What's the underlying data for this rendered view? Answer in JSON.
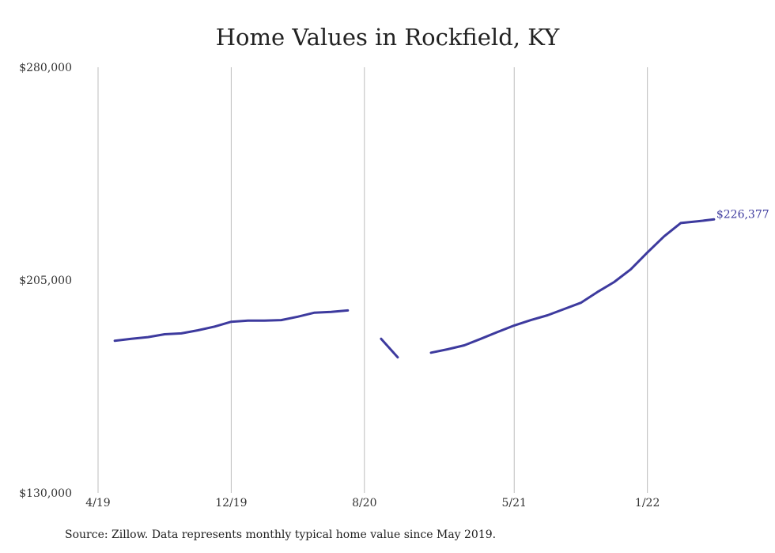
{
  "chart_data": {
    "type": "line",
    "title": "Home Values in Rockfield, KY",
    "xlabel": "",
    "ylabel": "",
    "ylim": [
      130000,
      280000
    ],
    "y_ticks": [
      "$130,000",
      "$205,000",
      "$280,000"
    ],
    "y_tick_values": [
      130000,
      205000,
      280000
    ],
    "x_ticks": [
      "4/19",
      "12/19",
      "8/20",
      "5/21",
      "1/22"
    ],
    "x_tick_dates": [
      "2019-04",
      "2019-12",
      "2020-08",
      "2021-05",
      "2022-01"
    ],
    "grid": "vertical",
    "line_color": "#3d3a9e",
    "end_label": "$226,377",
    "series": [
      {
        "segments": [
          [
            {
              "x": "2019-05",
              "y": 183600
            },
            {
              "x": "2019-06",
              "y": 184300
            },
            {
              "x": "2019-07",
              "y": 184900
            },
            {
              "x": "2019-08",
              "y": 185900
            },
            {
              "x": "2019-09",
              "y": 186200
            },
            {
              "x": "2019-10",
              "y": 187300
            },
            {
              "x": "2019-11",
              "y": 188600
            },
            {
              "x": "2019-12",
              "y": 190300
            },
            {
              "x": "2020-01",
              "y": 190700
            },
            {
              "x": "2020-02",
              "y": 190700
            },
            {
              "x": "2020-03",
              "y": 190900
            },
            {
              "x": "2020-04",
              "y": 192100
            },
            {
              "x": "2020-05",
              "y": 193500
            },
            {
              "x": "2020-06",
              "y": 193800
            },
            {
              "x": "2020-07",
              "y": 194300
            }
          ],
          [
            {
              "x": "2020-09",
              "y": 184300
            },
            {
              "x": "2020-10",
              "y": 177800
            }
          ],
          [
            {
              "x": "2020-12",
              "y": 179400
            },
            {
              "x": "2021-01",
              "y": 180600
            },
            {
              "x": "2021-02",
              "y": 182000
            },
            {
              "x": "2021-03",
              "y": 184300
            },
            {
              "x": "2021-04",
              "y": 186700
            },
            {
              "x": "2021-05",
              "y": 189000
            },
            {
              "x": "2021-06",
              "y": 190900
            },
            {
              "x": "2021-07",
              "y": 192600
            },
            {
              "x": "2021-08",
              "y": 194800
            },
            {
              "x": "2021-09",
              "y": 197000
            },
            {
              "x": "2021-10",
              "y": 200800
            },
            {
              "x": "2021-11",
              "y": 204300
            },
            {
              "x": "2021-12",
              "y": 208800
            },
            {
              "x": "2022-01",
              "y": 214700
            },
            {
              "x": "2022-02",
              "y": 220400
            },
            {
              "x": "2022-03",
              "y": 225100
            },
            {
              "x": "2022-04",
              "y": 225700
            },
            {
              "x": "2022-05",
              "y": 226377
            }
          ]
        ]
      }
    ]
  },
  "footer": {
    "source": "Source: Zillow. Data represents monthly typical home value since May 2019."
  }
}
